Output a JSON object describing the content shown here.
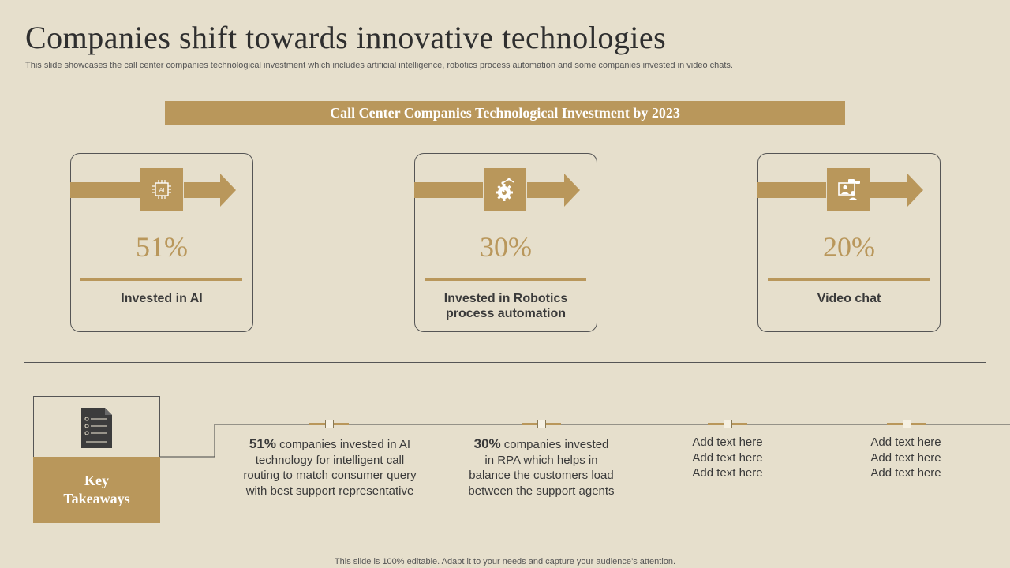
{
  "slide": {
    "title": "Companies shift towards innovative technologies",
    "subtitle": "This slide showcases the call center companies technological investment which includes artificial intelligence, robotics process automation and some companies invested in video chats.",
    "banner": "Call Center Companies Technological Investment by 2023",
    "footer": "This slide is 100% editable. Adapt it to your needs and capture your audience’s attention."
  },
  "cards": [
    {
      "icon": "ai-chip-icon",
      "percent": "51%",
      "label_lines": [
        "Invested in AI"
      ]
    },
    {
      "icon": "robotics-gear-icon",
      "percent": "30%",
      "label_lines": [
        "Invested in Robotics",
        "process automation"
      ]
    },
    {
      "icon": "video-chat-icon",
      "percent": "20%",
      "label_lines": [
        "Video chat"
      ]
    }
  ],
  "ai_chip_text": "AI",
  "key_takeaways": {
    "label_lines": [
      "Key",
      "Takeaways"
    ],
    "icon": "document-icon",
    "items": [
      {
        "highlight": "51%",
        "first_rest": " companies invested in AI",
        "lines": [
          "technology for intelligent call",
          "routing to match consumer query",
          "with best support representative"
        ]
      },
      {
        "highlight": "30%",
        "first_rest": " companies invested",
        "lines": [
          "in RPA which helps in",
          "balance the customers load",
          "between the support agents"
        ]
      },
      {
        "lines": [
          "Add text here",
          "Add text here",
          "Add text here"
        ]
      },
      {
        "lines": [
          "Add text here",
          "Add text here",
          "Add text here"
        ]
      }
    ]
  },
  "colors": {
    "accent": "#b9975b",
    "background": "#e6dfcc",
    "text": "#333333"
  }
}
